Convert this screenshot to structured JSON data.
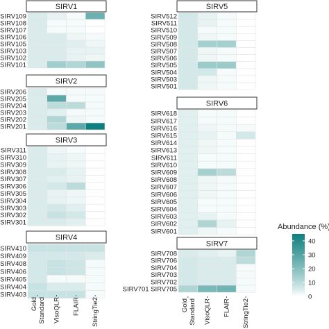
{
  "chart_data": {
    "type": "heatmap",
    "columns": [
      "Gold\nStandard",
      "VisoQLR",
      "FLAIR",
      "StringTie2"
    ],
    "legend": {
      "title": "Abundance (%)",
      "ticks": [
        0,
        10,
        20,
        30,
        40
      ],
      "range": [
        0,
        45
      ],
      "low_color": "#ffffff",
      "high_color": "#0d7f7f"
    },
    "facets": [
      {
        "title": "SIRV1",
        "rows": [
          "SIRV109",
          "SIRV108",
          "SIRV107",
          "SIRV106",
          "SIRV105",
          "SIRV103",
          "SIRV102",
          "SIRV101"
        ],
        "values": [
          [
            5,
            3,
            1,
            25
          ],
          [
            5,
            1,
            1,
            0
          ],
          [
            5,
            1,
            1,
            0
          ],
          [
            5,
            5,
            2,
            1
          ],
          [
            5,
            5,
            4,
            2
          ],
          [
            5,
            5,
            3,
            3
          ],
          [
            5,
            5,
            3,
            2
          ],
          [
            5,
            15,
            12,
            18
          ]
        ]
      },
      {
        "title": "SIRV2",
        "rows": [
          "SIRV206",
          "SIRV205",
          "SIRV204",
          "SIRV203",
          "SIRV202",
          "SIRV201"
        ],
        "values": [
          [
            5,
            1,
            1,
            1
          ],
          [
            5,
            28,
            1,
            1
          ],
          [
            5,
            10,
            10,
            1
          ],
          [
            5,
            4,
            1,
            1
          ],
          [
            5,
            12,
            2,
            1
          ],
          [
            5,
            10,
            28,
            45
          ]
        ]
      },
      {
        "title": "SIRV3",
        "rows": [
          "SIRV311",
          "SIRV310",
          "SIRV309",
          "SIRV308",
          "SIRV307",
          "SIRV306",
          "SIRV305",
          "SIRV304",
          "SIRV303",
          "SIRV302",
          "SIRV301"
        ],
        "values": [
          [
            5,
            2,
            1,
            0
          ],
          [
            5,
            3,
            2,
            0
          ],
          [
            5,
            3,
            2,
            0
          ],
          [
            5,
            5,
            3,
            0
          ],
          [
            5,
            4,
            3,
            0
          ],
          [
            5,
            6,
            10,
            0
          ],
          [
            5,
            3,
            2,
            0
          ],
          [
            5,
            3,
            2,
            0
          ],
          [
            5,
            6,
            4,
            0
          ],
          [
            5,
            8,
            6,
            0
          ],
          [
            5,
            5,
            4,
            0
          ]
        ]
      },
      {
        "title": "SIRV4",
        "rows": [
          "SIRV410",
          "SIRV409",
          "SIRV408",
          "SIRV406",
          "SIRV405",
          "SIRV404",
          "SIRV403"
        ],
        "values": [
          [
            8,
            8,
            8,
            8
          ],
          [
            6,
            6,
            6,
            5
          ],
          [
            6,
            8,
            7,
            1
          ],
          [
            6,
            8,
            7,
            1
          ],
          [
            6,
            1,
            1,
            1
          ],
          [
            8,
            5,
            5,
            1
          ],
          [
            8,
            8,
            8,
            1
          ]
        ]
      },
      {
        "title": "SIRV5",
        "rows": [
          "SIRV512",
          "SIRV511",
          "SIRV510",
          "SIRV509",
          "SIRV508",
          "SIRV507",
          "SIRV506",
          "SIRV505",
          "SIRV504",
          "SIRV503",
          "SIRV501"
        ],
        "values": [
          [
            6,
            3,
            1,
            0
          ],
          [
            6,
            3,
            1,
            0
          ],
          [
            6,
            1,
            1,
            0
          ],
          [
            6,
            2,
            1,
            0
          ],
          [
            6,
            14,
            14,
            0
          ],
          [
            6,
            2,
            1,
            0
          ],
          [
            6,
            2,
            1,
            0
          ],
          [
            6,
            16,
            16,
            0
          ],
          [
            6,
            6,
            1,
            0
          ],
          [
            6,
            2,
            1,
            0
          ],
          [
            6,
            2,
            1,
            0
          ]
        ]
      },
      {
        "title": "SIRV6",
        "rows": [
          "SIRV618",
          "SIRV617",
          "SIRV616",
          "SIRV615",
          "SIRV614",
          "SIRV613",
          "SIRV611",
          "SIRV610",
          "SIRV609",
          "SIRV608",
          "SIRV607",
          "SIRV606",
          "SIRV605",
          "SIRV604",
          "SIRV603",
          "SIRV602",
          "SIRV601"
        ],
        "values": [
          [
            4,
            1,
            1,
            0
          ],
          [
            4,
            1,
            1,
            0
          ],
          [
            4,
            2,
            1,
            1
          ],
          [
            4,
            3,
            1,
            6
          ],
          [
            4,
            2,
            1,
            0
          ],
          [
            4,
            2,
            1,
            0
          ],
          [
            4,
            1,
            1,
            0
          ],
          [
            4,
            1,
            1,
            0
          ],
          [
            4,
            14,
            10,
            0
          ],
          [
            4,
            2,
            1,
            0
          ],
          [
            4,
            2,
            1,
            0
          ],
          [
            4,
            2,
            1,
            0
          ],
          [
            4,
            1,
            1,
            0
          ],
          [
            4,
            1,
            1,
            0
          ],
          [
            4,
            3,
            1,
            0
          ],
          [
            4,
            12,
            3,
            0
          ],
          [
            4,
            2,
            1,
            0
          ]
        ]
      },
      {
        "title": "SIRV7",
        "rows": [
          "SIRV708",
          "SIRV706",
          "SIRV704",
          "SIRV703",
          "SIRV702",
          "SIRV705"
        ],
        "row_label_display": [
          "SIRV708",
          "SIRV706",
          "SIRV704",
          "SIRV703",
          "SIRV702",
          "SIRV701 SIRV705"
        ],
        "values": [
          [
            5,
            4,
            3,
            12
          ],
          [
            6,
            5,
            5,
            10
          ],
          [
            6,
            5,
            5,
            1
          ],
          [
            6,
            5,
            5,
            1
          ],
          [
            6,
            5,
            5,
            1
          ],
          [
            12,
            22,
            24,
            1
          ]
        ]
      }
    ]
  }
}
